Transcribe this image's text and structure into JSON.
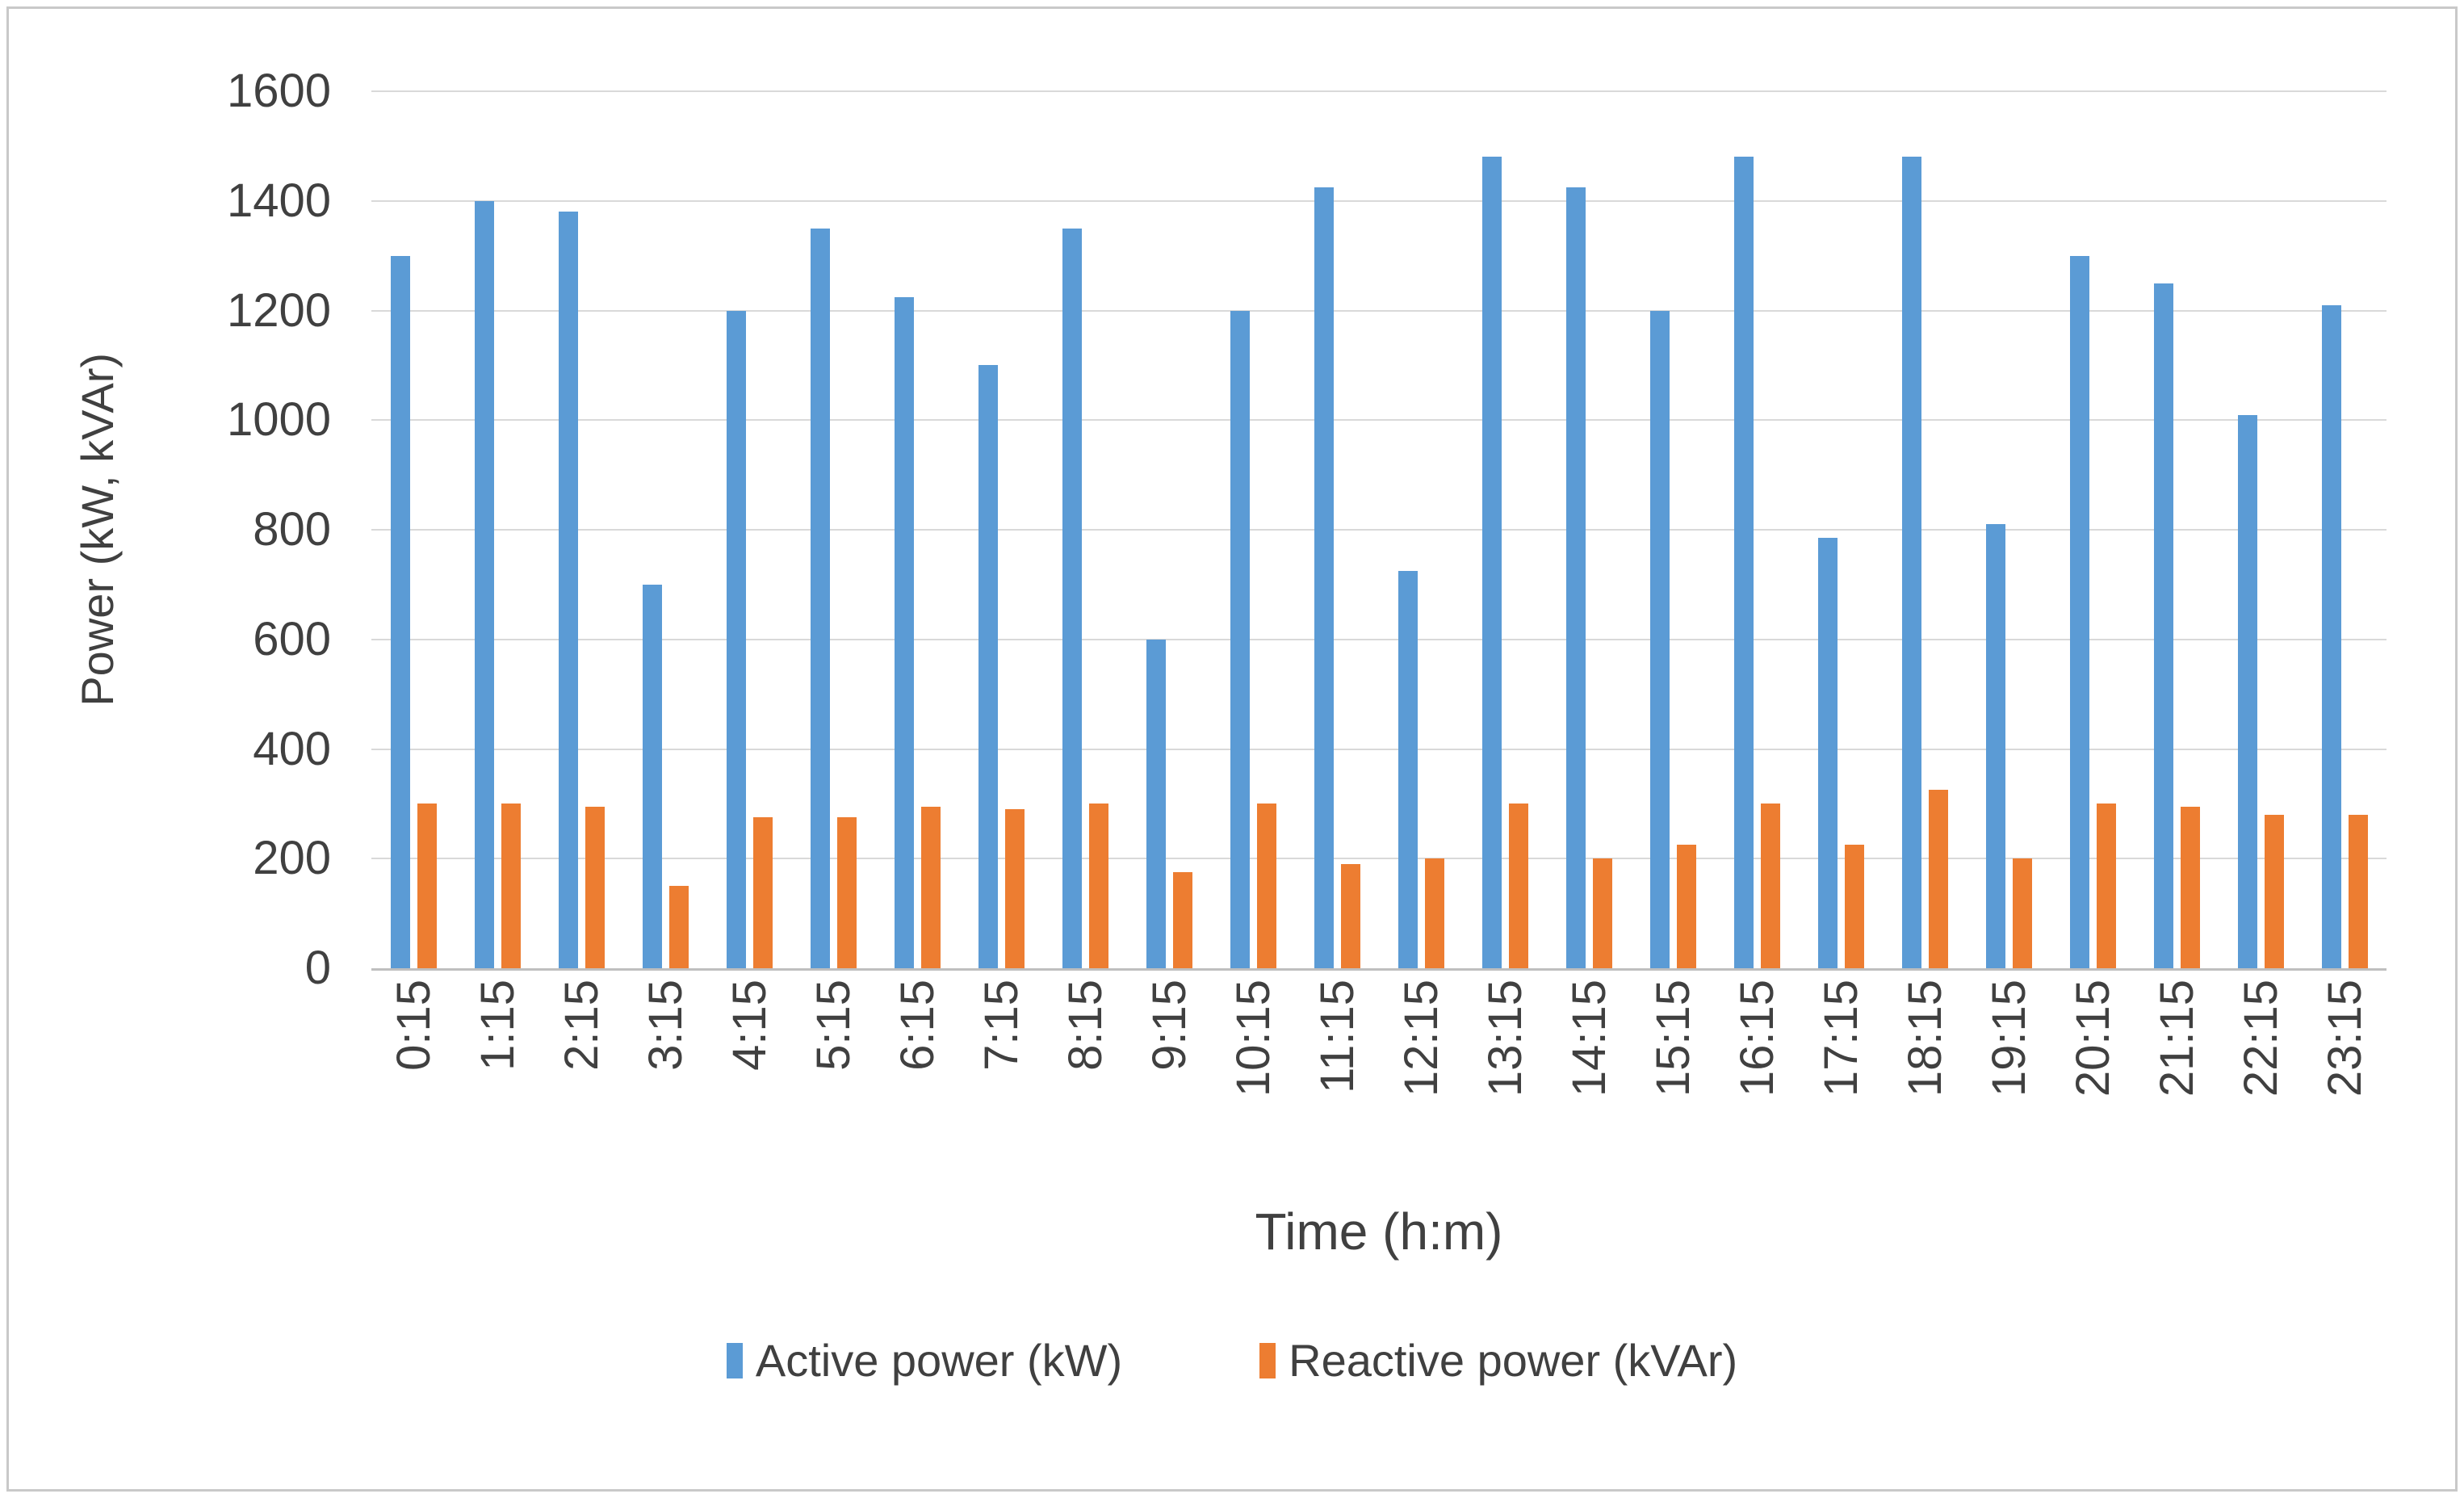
{
  "chart_data": {
    "type": "bar",
    "title": "",
    "xlabel": "Time (h:m)",
    "ylabel": "Power (kW, kVAr)",
    "ylim": [
      0,
      1600
    ],
    "ytick_step": 200,
    "yticks": [
      0,
      200,
      400,
      600,
      800,
      1000,
      1200,
      1400,
      1600
    ],
    "grid": true,
    "legend_position": "bottom",
    "categories": [
      "0:15",
      "1:15",
      "2:15",
      "3:15",
      "4:15",
      "5:15",
      "6:15",
      "7:15",
      "8:15",
      "9:15",
      "10:15",
      "11:15",
      "12:15",
      "13:15",
      "14:15",
      "15:15",
      "16:15",
      "17:15",
      "18:15",
      "19:15",
      "20:15",
      "21:15",
      "22:15",
      "23:15"
    ],
    "series": [
      {
        "name": "Active power (kW)",
        "color": "#5B9BD5",
        "values": [
          1300,
          1400,
          1380,
          700,
          1200,
          1350,
          1225,
          1100,
          1350,
          600,
          1200,
          1425,
          725,
          1480,
          1425,
          1200,
          1480,
          785,
          1480,
          810,
          1300,
          1250,
          1010,
          1210
        ]
      },
      {
        "name": "Reactive power (kVAr)",
        "color": "#ED7D31",
        "values": [
          300,
          300,
          295,
          150,
          275,
          275,
          295,
          290,
          300,
          175,
          300,
          190,
          200,
          300,
          200,
          225,
          300,
          225,
          325,
          200,
          300,
          295,
          280,
          280
        ]
      }
    ]
  },
  "colors": {
    "background": "#FFFFFF",
    "border": "#C9C9C9",
    "gridline": "#D9D9D9",
    "axis_line": "#BFBFBF",
    "text": "#404040",
    "series_active": "#5B9BD5",
    "series_reactive": "#ED7D31"
  }
}
